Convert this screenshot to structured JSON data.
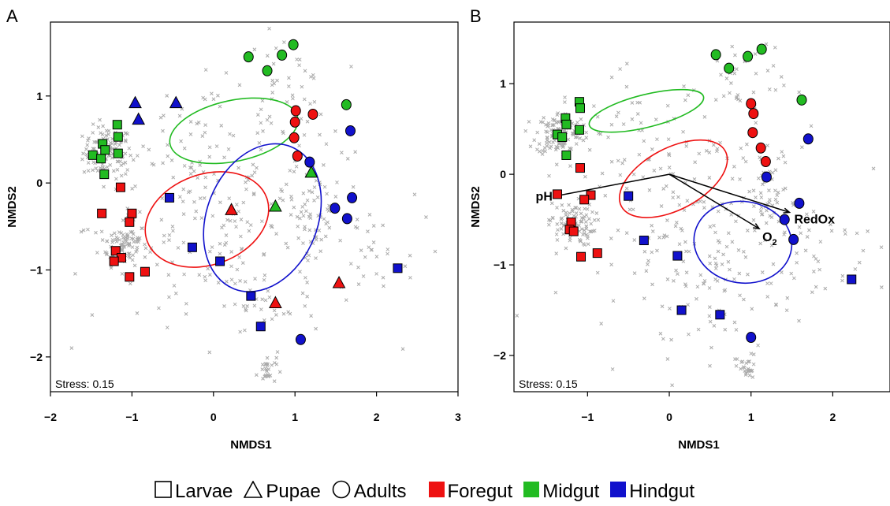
{
  "chart_data": [
    {
      "type": "scatter",
      "panel_label": "A",
      "xlabel": "NMDS1",
      "ylabel": "NMDS2",
      "xlim": [
        -2.0,
        3.0
      ],
      "ylim": [
        -2.4,
        1.85
      ],
      "x_ticks": [
        -2,
        -1,
        0,
        1,
        2,
        3
      ],
      "y_ticks": [
        -2,
        -1,
        0,
        1
      ],
      "x_tick_labels": [
        "−2",
        "−1",
        "0",
        "1",
        "2",
        "3"
      ],
      "y_tick_labels": [
        "−2",
        "−1",
        "0",
        "1"
      ],
      "stress_text": "Stress: 0.15",
      "grid": false,
      "background_otus_color": "#aaaaaa",
      "ellipses": [
        {
          "group": "Midgut",
          "center": [
            0.25,
            0.6
          ],
          "rx": 0.8,
          "ry": 0.35,
          "angle_deg": 12
        },
        {
          "group": "Foregut",
          "center": [
            -0.08,
            -0.42
          ],
          "rx": 0.78,
          "ry": 0.52,
          "angle_deg": 20
        },
        {
          "group": "Hindgut",
          "center": [
            0.6,
            -0.4
          ],
          "rx": 0.68,
          "ry": 0.88,
          "angle_deg": -22
        }
      ],
      "samples": [
        {
          "stage": "Larvae",
          "gut": "Midgut",
          "x": -1.48,
          "y": 0.32
        },
        {
          "stage": "Larvae",
          "gut": "Midgut",
          "x": -1.38,
          "y": 0.28
        },
        {
          "stage": "Larvae",
          "gut": "Midgut",
          "x": -1.36,
          "y": 0.45
        },
        {
          "stage": "Larvae",
          "gut": "Midgut",
          "x": -1.33,
          "y": 0.38
        },
        {
          "stage": "Larvae",
          "gut": "Midgut",
          "x": -1.34,
          "y": 0.1
        },
        {
          "stage": "Larvae",
          "gut": "Midgut",
          "x": -1.18,
          "y": 0.67
        },
        {
          "stage": "Larvae",
          "gut": "Midgut",
          "x": -1.17,
          "y": 0.53
        },
        {
          "stage": "Larvae",
          "gut": "Midgut",
          "x": -1.17,
          "y": 0.34
        },
        {
          "stage": "Larvae",
          "gut": "Foregut",
          "x": -1.14,
          "y": -0.05
        },
        {
          "stage": "Larvae",
          "gut": "Foregut",
          "x": -1.37,
          "y": -0.35
        },
        {
          "stage": "Larvae",
          "gut": "Foregut",
          "x": -1.0,
          "y": -0.35
        },
        {
          "stage": "Larvae",
          "gut": "Foregut",
          "x": -1.03,
          "y": -0.45
        },
        {
          "stage": "Larvae",
          "gut": "Foregut",
          "x": -1.2,
          "y": -0.78
        },
        {
          "stage": "Larvae",
          "gut": "Foregut",
          "x": -1.13,
          "y": -0.86
        },
        {
          "stage": "Larvae",
          "gut": "Foregut",
          "x": -1.22,
          "y": -0.9
        },
        {
          "stage": "Larvae",
          "gut": "Foregut",
          "x": -1.03,
          "y": -1.08
        },
        {
          "stage": "Larvae",
          "gut": "Foregut",
          "x": -0.84,
          "y": -1.02
        },
        {
          "stage": "Larvae",
          "gut": "Hindgut",
          "x": -0.54,
          "y": -0.17
        },
        {
          "stage": "Larvae",
          "gut": "Hindgut",
          "x": -0.26,
          "y": -0.74
        },
        {
          "stage": "Larvae",
          "gut": "Hindgut",
          "x": 0.08,
          "y": -0.9
        },
        {
          "stage": "Larvae",
          "gut": "Hindgut",
          "x": 0.46,
          "y": -1.3
        },
        {
          "stage": "Larvae",
          "gut": "Hindgut",
          "x": 0.58,
          "y": -1.65
        },
        {
          "stage": "Larvae",
          "gut": "Hindgut",
          "x": 2.26,
          "y": -0.98
        },
        {
          "stage": "Pupae",
          "gut": "Hindgut",
          "x": -0.96,
          "y": 0.92
        },
        {
          "stage": "Pupae",
          "gut": "Hindgut",
          "x": -0.92,
          "y": 0.73
        },
        {
          "stage": "Pupae",
          "gut": "Hindgut",
          "x": -0.46,
          "y": 0.92
        },
        {
          "stage": "Pupae",
          "gut": "Foregut",
          "x": 0.22,
          "y": -0.31
        },
        {
          "stage": "Pupae",
          "gut": "Foregut",
          "x": 0.76,
          "y": -1.38
        },
        {
          "stage": "Pupae",
          "gut": "Foregut",
          "x": 1.54,
          "y": -1.15
        },
        {
          "stage": "Pupae",
          "gut": "Midgut",
          "x": 0.76,
          "y": -0.27
        },
        {
          "stage": "Pupae",
          "gut": "Midgut",
          "x": 1.2,
          "y": 0.12
        },
        {
          "stage": "Adults",
          "gut": "Midgut",
          "x": 0.43,
          "y": 1.45
        },
        {
          "stage": "Adults",
          "gut": "Midgut",
          "x": 0.66,
          "y": 1.29
        },
        {
          "stage": "Adults",
          "gut": "Midgut",
          "x": 0.84,
          "y": 1.47
        },
        {
          "stage": "Adults",
          "gut": "Midgut",
          "x": 0.98,
          "y": 1.59
        },
        {
          "stage": "Adults",
          "gut": "Midgut",
          "x": 1.63,
          "y": 0.9
        },
        {
          "stage": "Adults",
          "gut": "Foregut",
          "x": 1.01,
          "y": 0.83
        },
        {
          "stage": "Adults",
          "gut": "Foregut",
          "x": 1.22,
          "y": 0.79
        },
        {
          "stage": "Adults",
          "gut": "Foregut",
          "x": 1.0,
          "y": 0.7
        },
        {
          "stage": "Adults",
          "gut": "Foregut",
          "x": 0.99,
          "y": 0.52
        },
        {
          "stage": "Adults",
          "gut": "Foregut",
          "x": 1.03,
          "y": 0.31
        },
        {
          "stage": "Adults",
          "gut": "Hindgut",
          "x": 1.68,
          "y": 0.6
        },
        {
          "stage": "Adults",
          "gut": "Hindgut",
          "x": 1.18,
          "y": 0.24
        },
        {
          "stage": "Adults",
          "gut": "Hindgut",
          "x": 1.7,
          "y": -0.17
        },
        {
          "stage": "Adults",
          "gut": "Hindgut",
          "x": 1.49,
          "y": -0.29
        },
        {
          "stage": "Adults",
          "gut": "Hindgut",
          "x": 1.64,
          "y": -0.41
        },
        {
          "stage": "Adults",
          "gut": "Hindgut",
          "x": 1.07,
          "y": -1.8
        }
      ]
    },
    {
      "type": "scatter",
      "panel_label": "B",
      "xlabel": "NMDS1",
      "ylabel": "NMDS2",
      "xlim": [
        -1.9,
        2.7
      ],
      "ylim": [
        -2.4,
        1.68
      ],
      "x_ticks": [
        -1,
        0,
        1,
        2
      ],
      "y_ticks": [
        -2,
        -1,
        0,
        1
      ],
      "x_tick_labels": [
        "−1",
        "0",
        "1",
        "2"
      ],
      "y_tick_labels": [
        "−2",
        "−1",
        "0",
        "1"
      ],
      "stress_text": "Stress: 0.15",
      "grid": false,
      "background_otus_color": "#aaaaaa",
      "vectors": [
        {
          "label": "pH",
          "x": -1.39,
          "y": -0.24
        },
        {
          "label": "RedOx",
          "x": 1.47,
          "y": -0.42
        },
        {
          "label": "O",
          "subscript": "2",
          "x": 1.1,
          "y": -0.6
        }
      ],
      "ellipses": [
        {
          "group": "Midgut",
          "center": [
            -0.28,
            0.7
          ],
          "rx": 0.72,
          "ry": 0.18,
          "angle_deg": 14
        },
        {
          "group": "Foregut",
          "center": [
            0.05,
            -0.05
          ],
          "rx": 0.72,
          "ry": 0.34,
          "angle_deg": 28
        },
        {
          "group": "Hindgut",
          "center": [
            0.9,
            -0.75
          ],
          "rx": 0.6,
          "ry": 0.45,
          "angle_deg": -8
        }
      ],
      "samples": [
        {
          "stage": "Larvae",
          "gut": "Midgut",
          "x": -1.1,
          "y": 0.8
        },
        {
          "stage": "Larvae",
          "gut": "Midgut",
          "x": -1.09,
          "y": 0.73
        },
        {
          "stage": "Larvae",
          "gut": "Midgut",
          "x": -1.27,
          "y": 0.62
        },
        {
          "stage": "Larvae",
          "gut": "Midgut",
          "x": -1.26,
          "y": 0.55
        },
        {
          "stage": "Larvae",
          "gut": "Midgut",
          "x": -1.37,
          "y": 0.44
        },
        {
          "stage": "Larvae",
          "gut": "Midgut",
          "x": -1.31,
          "y": 0.41
        },
        {
          "stage": "Larvae",
          "gut": "Midgut",
          "x": -1.1,
          "y": 0.49
        },
        {
          "stage": "Larvae",
          "gut": "Midgut",
          "x": -1.26,
          "y": 0.21
        },
        {
          "stage": "Larvae",
          "gut": "Foregut",
          "x": -1.09,
          "y": 0.07
        },
        {
          "stage": "Larvae",
          "gut": "Foregut",
          "x": -1.37,
          "y": -0.22
        },
        {
          "stage": "Larvae",
          "gut": "Foregut",
          "x": -0.96,
          "y": -0.23
        },
        {
          "stage": "Larvae",
          "gut": "Foregut",
          "x": -1.04,
          "y": -0.28
        },
        {
          "stage": "Larvae",
          "gut": "Foregut",
          "x": -1.2,
          "y": -0.53
        },
        {
          "stage": "Larvae",
          "gut": "Foregut",
          "x": -1.22,
          "y": -0.61
        },
        {
          "stage": "Larvae",
          "gut": "Foregut",
          "x": -1.17,
          "y": -0.63
        },
        {
          "stage": "Larvae",
          "gut": "Foregut",
          "x": -1.08,
          "y": -0.91
        },
        {
          "stage": "Larvae",
          "gut": "Foregut",
          "x": -0.88,
          "y": -0.87
        },
        {
          "stage": "Larvae",
          "gut": "Hindgut",
          "x": -0.5,
          "y": -0.24
        },
        {
          "stage": "Larvae",
          "gut": "Hindgut",
          "x": -0.31,
          "y": -0.73
        },
        {
          "stage": "Larvae",
          "gut": "Hindgut",
          "x": 0.1,
          "y": -0.9
        },
        {
          "stage": "Larvae",
          "gut": "Hindgut",
          "x": 0.15,
          "y": -1.5
        },
        {
          "stage": "Larvae",
          "gut": "Hindgut",
          "x": 0.62,
          "y": -1.55
        },
        {
          "stage": "Larvae",
          "gut": "Hindgut",
          "x": 2.23,
          "y": -1.16
        },
        {
          "stage": "Adults",
          "gut": "Midgut",
          "x": 0.57,
          "y": 1.32
        },
        {
          "stage": "Adults",
          "gut": "Midgut",
          "x": 0.73,
          "y": 1.17
        },
        {
          "stage": "Adults",
          "gut": "Midgut",
          "x": 0.96,
          "y": 1.3
        },
        {
          "stage": "Adults",
          "gut": "Midgut",
          "x": 1.13,
          "y": 1.38
        },
        {
          "stage": "Adults",
          "gut": "Midgut",
          "x": 1.62,
          "y": 0.82
        },
        {
          "stage": "Adults",
          "gut": "Foregut",
          "x": 1.0,
          "y": 0.78
        },
        {
          "stage": "Adults",
          "gut": "Foregut",
          "x": 1.03,
          "y": 0.67
        },
        {
          "stage": "Adults",
          "gut": "Foregut",
          "x": 1.02,
          "y": 0.46
        },
        {
          "stage": "Adults",
          "gut": "Foregut",
          "x": 1.12,
          "y": 0.29
        },
        {
          "stage": "Adults",
          "gut": "Foregut",
          "x": 1.18,
          "y": 0.14
        },
        {
          "stage": "Adults",
          "gut": "Hindgut",
          "x": 1.7,
          "y": 0.39
        },
        {
          "stage": "Adults",
          "gut": "Hindgut",
          "x": 1.19,
          "y": -0.03
        },
        {
          "stage": "Adults",
          "gut": "Hindgut",
          "x": 1.59,
          "y": -0.32
        },
        {
          "stage": "Adults",
          "gut": "Hindgut",
          "x": 1.41,
          "y": -0.5
        },
        {
          "stage": "Adults",
          "gut": "Hindgut",
          "x": 1.52,
          "y": -0.72
        },
        {
          "stage": "Adults",
          "gut": "Hindgut",
          "x": 1.0,
          "y": -1.8
        }
      ]
    }
  ],
  "legend": {
    "stages": [
      {
        "name": "Larvae",
        "shape": "square"
      },
      {
        "name": "Pupae",
        "shape": "triangle"
      },
      {
        "name": "Adults",
        "shape": "circle"
      }
    ],
    "guts": [
      {
        "name": "Foregut",
        "color": "#ee1111"
      },
      {
        "name": "Midgut",
        "color": "#22bb22"
      },
      {
        "name": "Hindgut",
        "color": "#1111cc"
      }
    ]
  }
}
